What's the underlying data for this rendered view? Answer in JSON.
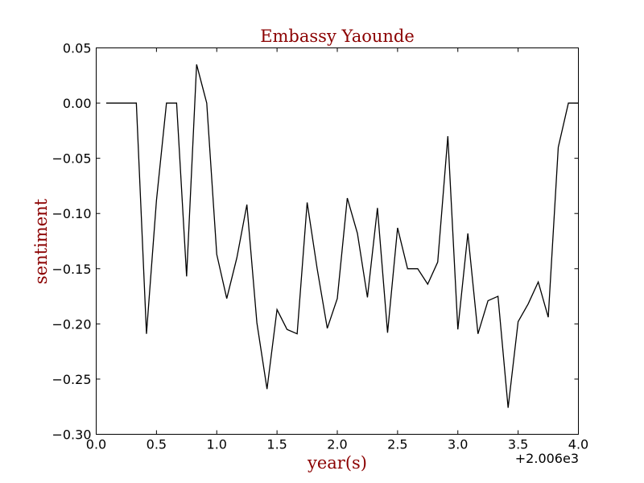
{
  "chart_data": {
    "type": "line",
    "title": "Embassy Yaounde",
    "xlabel": "year(s)",
    "ylabel": "sentiment",
    "x_offset_label": "+2.006e3",
    "xlim": [
      0.0,
      4.0
    ],
    "ylim": [
      -0.3,
      0.05
    ],
    "xticks": [
      "0.0",
      "0.5",
      "1.0",
      "1.5",
      "2.0",
      "2.5",
      "3.0",
      "3.5",
      "4.0"
    ],
    "yticks": [
      "0.05",
      "0.00",
      "−0.05",
      "−0.10",
      "−0.15",
      "−0.20",
      "−0.25",
      "−0.30"
    ],
    "grid": false,
    "colors": {
      "line": "#000000",
      "title": "#8b0000",
      "labels": "#8b0000"
    },
    "series": [
      {
        "x": [
          0.083,
          0.167,
          0.25,
          0.333,
          0.417,
          0.5,
          0.583,
          0.667,
          0.75,
          0.833,
          0.917,
          1.0,
          1.083,
          1.167,
          1.25,
          1.333,
          1.417,
          1.5,
          1.583,
          1.667,
          1.75,
          1.833,
          1.917,
          2.0,
          2.083,
          2.167,
          2.25,
          2.333,
          2.417,
          2.5,
          2.583,
          2.667,
          2.75,
          2.833,
          2.917,
          3.0,
          3.083,
          3.167,
          3.25,
          3.333,
          3.417,
          3.5,
          3.583,
          3.667,
          3.75,
          3.833,
          3.917,
          4.0
        ],
        "y": [
          0.0,
          0.0,
          0.0,
          0.0,
          -0.209,
          -0.088,
          0.0,
          0.0,
          -0.157,
          0.035,
          0.0,
          -0.137,
          -0.177,
          -0.14,
          -0.092,
          -0.199,
          -0.259,
          -0.187,
          -0.205,
          -0.209,
          -0.09,
          -0.15,
          -0.204,
          -0.177,
          -0.086,
          -0.118,
          -0.176,
          -0.095,
          -0.208,
          -0.113,
          -0.15,
          -0.15,
          -0.164,
          -0.144,
          -0.03,
          -0.205,
          -0.118,
          -0.209,
          -0.179,
          -0.175,
          -0.276,
          -0.198,
          -0.182,
          -0.162,
          -0.194,
          -0.04,
          0.0,
          0.0
        ]
      }
    ]
  }
}
